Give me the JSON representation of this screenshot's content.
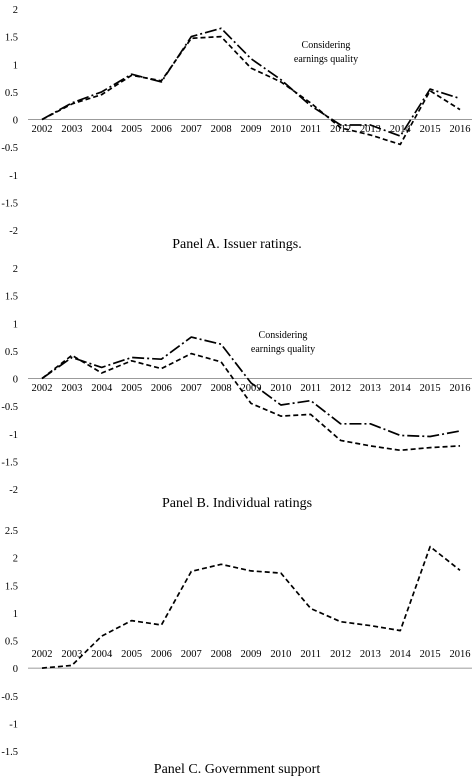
{
  "chart_data": [
    {
      "type": "line",
      "title": "Panel A. Issuer ratings.",
      "categories": [
        "2002",
        "2003",
        "2004",
        "2005",
        "2006",
        "2007",
        "2008",
        "2009",
        "2010",
        "2011",
        "2012",
        "2013",
        "2014",
        "2015",
        "2016"
      ],
      "yticks": [
        "-2",
        "-1.5",
        "-1",
        "-0.5",
        "0",
        "0.5",
        "1",
        "1.5",
        "2"
      ],
      "ylim": [
        -2,
        2
      ],
      "annotation": [
        "Considering",
        "earnings quality"
      ],
      "series": [
        {
          "style": "dash",
          "values": [
            0,
            0.28,
            0.45,
            0.8,
            0.7,
            1.47,
            1.5,
            0.93,
            0.68,
            0.3,
            -0.15,
            -0.28,
            -0.45,
            0.52,
            0.18
          ]
        },
        {
          "style": "dash-dot",
          "values": [
            0,
            0.3,
            0.5,
            0.82,
            0.68,
            1.5,
            1.65,
            1.1,
            0.72,
            0.25,
            -0.1,
            -0.1,
            -0.3,
            0.55,
            0.38
          ]
        }
      ]
    },
    {
      "type": "line",
      "title": "Panel B. Individual ratings",
      "categories": [
        "2002",
        "2003",
        "2004",
        "2005",
        "2006",
        "2007",
        "2008",
        "2009",
        "2010",
        "2011",
        "2012",
        "2013",
        "2014",
        "2015",
        "2016"
      ],
      "yticks": [
        "-2",
        "-1.5",
        "-1",
        "-0.5",
        "0",
        "0.5",
        "1",
        "1.5",
        "2"
      ],
      "ylim": [
        -2,
        2
      ],
      "annotation": [
        "Considering",
        "earnings quality"
      ],
      "series": [
        {
          "style": "dash",
          "values": [
            0,
            0.42,
            0.1,
            0.32,
            0.18,
            0.45,
            0.3,
            -0.45,
            -0.68,
            -0.65,
            -1.12,
            -1.22,
            -1.3,
            -1.25,
            -1.22
          ]
        },
        {
          "style": "dash-dot",
          "values": [
            0,
            0.38,
            0.2,
            0.38,
            0.35,
            0.75,
            0.62,
            -0.08,
            -0.48,
            -0.4,
            -0.82,
            -0.82,
            -1.03,
            -1.05,
            -0.95
          ]
        }
      ]
    },
    {
      "type": "line",
      "title": "Panel C. Government support",
      "categories": [
        "2002",
        "2003",
        "2004",
        "2005",
        "2006",
        "2007",
        "2008",
        "2009",
        "2010",
        "2011",
        "2012",
        "2013",
        "2014",
        "2015",
        "2016"
      ],
      "yticks": [
        "-1.5",
        "-1",
        "-0.5",
        "0",
        "0.5",
        "1",
        "1.5",
        "2",
        "2.5"
      ],
      "ylim": [
        -1.5,
        2.5
      ],
      "series": [
        {
          "style": "dash",
          "values": [
            0,
            0.05,
            0.58,
            0.86,
            0.78,
            1.75,
            1.88,
            1.76,
            1.72,
            1.08,
            0.84,
            0.77,
            0.68,
            2.2,
            1.77
          ]
        }
      ]
    }
  ]
}
